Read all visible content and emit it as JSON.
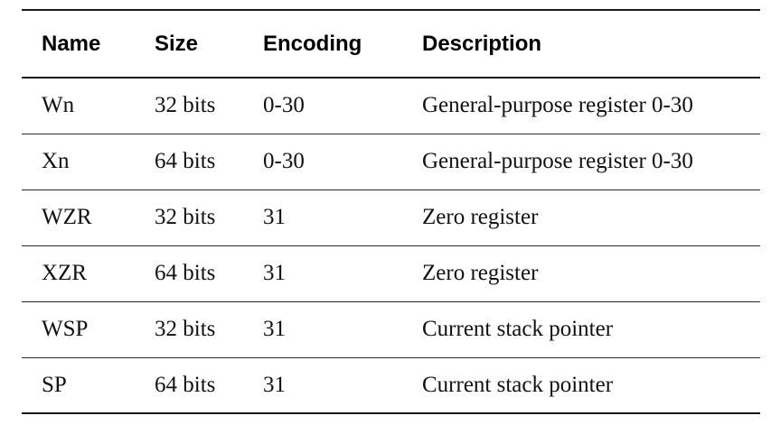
{
  "table": {
    "headers": [
      "Name",
      "Size",
      "Encoding",
      "Description"
    ],
    "rows": [
      [
        "Wn",
        "32 bits",
        "0-30",
        "General-purpose register 0-30"
      ],
      [
        "Xn",
        "64 bits",
        "0-30",
        "General-purpose register 0-30"
      ],
      [
        "WZR",
        "32 bits",
        "31",
        "Zero register"
      ],
      [
        "XZR",
        "64 bits",
        "31",
        "Zero register"
      ],
      [
        "WSP",
        "32 bits",
        "31",
        "Current stack pointer"
      ],
      [
        "SP",
        "64 bits",
        "31",
        "Current stack pointer"
      ]
    ]
  }
}
